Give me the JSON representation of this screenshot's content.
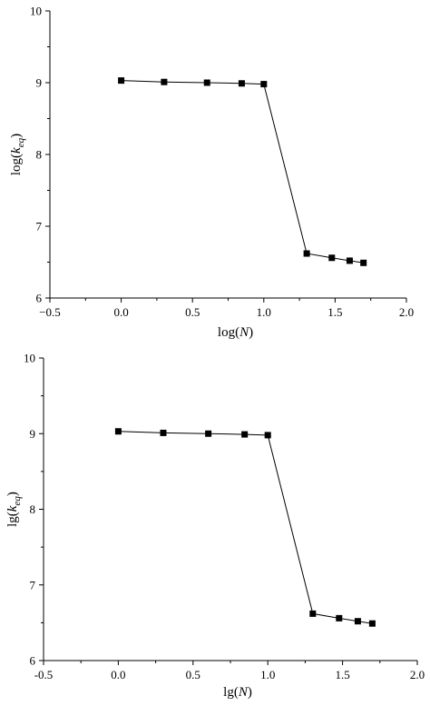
{
  "chart_data": [
    {
      "type": "line",
      "title": "",
      "xlabel": {
        "prefix": "log(",
        "italic": "N",
        "suffix": ")"
      },
      "ylabel": {
        "prefix": "log(",
        "italic": "k",
        "sub": "eq",
        "suffix": ")"
      },
      "xlim": [
        -0.5,
        2.0
      ],
      "ylim": [
        6,
        10
      ],
      "x_ticks": [
        -0.5,
        0.0,
        0.5,
        1.0,
        1.5,
        2.0
      ],
      "x_tick_labels": [
        "−0.5",
        "0.0",
        "0.5",
        "1.0",
        "1.5",
        "2.0"
      ],
      "y_ticks": [
        6,
        7,
        8,
        9,
        10
      ],
      "y_tick_labels": [
        "6",
        "7",
        "8",
        "9",
        "10"
      ],
      "grid": false,
      "legend": "none",
      "series": [
        {
          "x": [
            0.0,
            0.301,
            0.602,
            0.845,
            1.0,
            1.301,
            1.477,
            1.602,
            1.699
          ],
          "y": [
            9.03,
            9.01,
            9.0,
            8.99,
            8.98,
            6.62,
            6.56,
            6.52,
            6.49
          ]
        }
      ]
    },
    {
      "type": "line",
      "title": "",
      "xlabel": {
        "prefix": "lg(",
        "italic": "N",
        "suffix": ")"
      },
      "ylabel": {
        "prefix": "lg(",
        "italic": "k",
        "sub": "eq",
        "suffix": ")"
      },
      "xlim": [
        -0.5,
        2.0
      ],
      "ylim": [
        6,
        10
      ],
      "x_ticks": [
        -0.5,
        0.0,
        0.5,
        1.0,
        1.5,
        2.0
      ],
      "x_tick_labels": [
        "-0.5",
        "0.0",
        "0.5",
        "1.0",
        "1.5",
        "2.0"
      ],
      "y_ticks": [
        6,
        7,
        8,
        9,
        10
      ],
      "y_tick_labels": [
        "6",
        "7",
        "8",
        "9",
        "10"
      ],
      "grid": false,
      "legend": "none",
      "series": [
        {
          "x": [
            0.0,
            0.301,
            0.602,
            0.845,
            1.0,
            1.301,
            1.477,
            1.602,
            1.699
          ],
          "y": [
            9.03,
            9.01,
            9.0,
            8.99,
            8.98,
            6.62,
            6.56,
            6.52,
            6.49
          ]
        }
      ]
    }
  ]
}
